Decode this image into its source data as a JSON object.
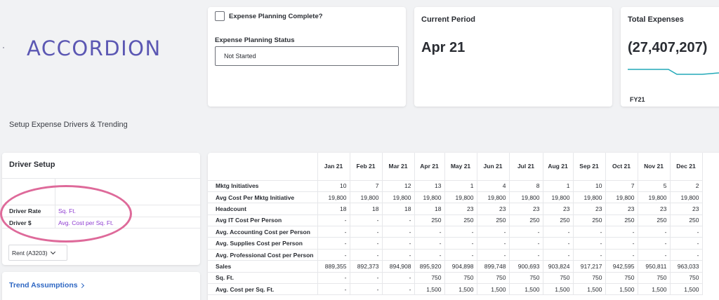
{
  "brand": {
    "logo_text": "ACCORDION",
    "color": "#5b57b3"
  },
  "page_subtitle": "Setup Expense Drivers & Trending",
  "planning": {
    "complete_label": "Expense Planning Complete?",
    "complete_checked": false,
    "status_label": "Expense Planning Status",
    "status_value": "Not Started"
  },
  "period": {
    "title": "Current Period",
    "value": "Apr 21"
  },
  "expenses": {
    "title": "Total Expenses",
    "value": "(27,407,207)",
    "footer": "FY21",
    "sparkline_color": "#22a9b8"
  },
  "driver_setup": {
    "title": "Driver Setup",
    "rows": [
      {
        "label": "",
        "value": ""
      },
      {
        "label": "Driver Rate",
        "value": "Sq. Ft."
      },
      {
        "label": "Driver $",
        "value": "Avg. Cost per Sq. Ft."
      }
    ],
    "account_select": "Rent (A3203)",
    "value_color": "#8e3bd1",
    "highlight_color": "#de6a9a"
  },
  "trend": {
    "link_label": "Trend Assumptions"
  },
  "table": {
    "columns": [
      "Jan 21",
      "Feb 21",
      "Mar 21",
      "Apr 21",
      "May 21",
      "Jun 21",
      "Jul 21",
      "Aug 21",
      "Sep 21",
      "Oct 21",
      "Nov 21",
      "Dec 21"
    ],
    "rows": [
      {
        "label": "Mktg Initiatives",
        "values": [
          "10",
          "7",
          "12",
          "13",
          "1",
          "4",
          "8",
          "1",
          "10",
          "7",
          "5",
          "2"
        ]
      },
      {
        "label": "Avg Cost Per Mktg Initiative",
        "values": [
          "19,800",
          "19,800",
          "19,800",
          "19,800",
          "19,800",
          "19,800",
          "19,800",
          "19,800",
          "19,800",
          "19,800",
          "19,800",
          "19,800"
        ]
      },
      {
        "label": "Headcount",
        "values": [
          "18",
          "18",
          "18",
          "18",
          "23",
          "23",
          "23",
          "23",
          "23",
          "23",
          "23",
          "23"
        ]
      },
      {
        "label": "Avg IT Cost Per Person",
        "values": [
          "-",
          "-",
          "-",
          "250",
          "250",
          "250",
          "250",
          "250",
          "250",
          "250",
          "250",
          "250"
        ]
      },
      {
        "label": "Avg. Accounting Cost per Person",
        "values": [
          "-",
          "-",
          "-",
          "-",
          "-",
          "-",
          "-",
          "-",
          "-",
          "-",
          "-",
          "-"
        ]
      },
      {
        "label": "Avg. Supplies Cost per Person",
        "values": [
          "-",
          "-",
          "-",
          "-",
          "-",
          "-",
          "-",
          "-",
          "-",
          "-",
          "-",
          "-"
        ]
      },
      {
        "label": "Avg. Professional Cost per Person",
        "values": [
          "-",
          "-",
          "-",
          "-",
          "-",
          "-",
          "-",
          "-",
          "-",
          "-",
          "-",
          "-"
        ]
      },
      {
        "label": "Sales",
        "values": [
          "889,355",
          "892,373",
          "894,908",
          "895,920",
          "904,898",
          "899,748",
          "900,693",
          "903,824",
          "917,217",
          "942,595",
          "950,811",
          "963,033"
        ]
      },
      {
        "label": "Sq. Ft.",
        "values": [
          "-",
          "-",
          "-",
          "750",
          "750",
          "750",
          "750",
          "750",
          "750",
          "750",
          "750",
          "750"
        ]
      },
      {
        "label": "Avg. Cost per Sq. Ft.",
        "values": [
          "-",
          "-",
          "-",
          "1,500",
          "1,500",
          "1,500",
          "1,500",
          "1,500",
          "1,500",
          "1,500",
          "1,500",
          "1,500"
        ]
      }
    ]
  }
}
